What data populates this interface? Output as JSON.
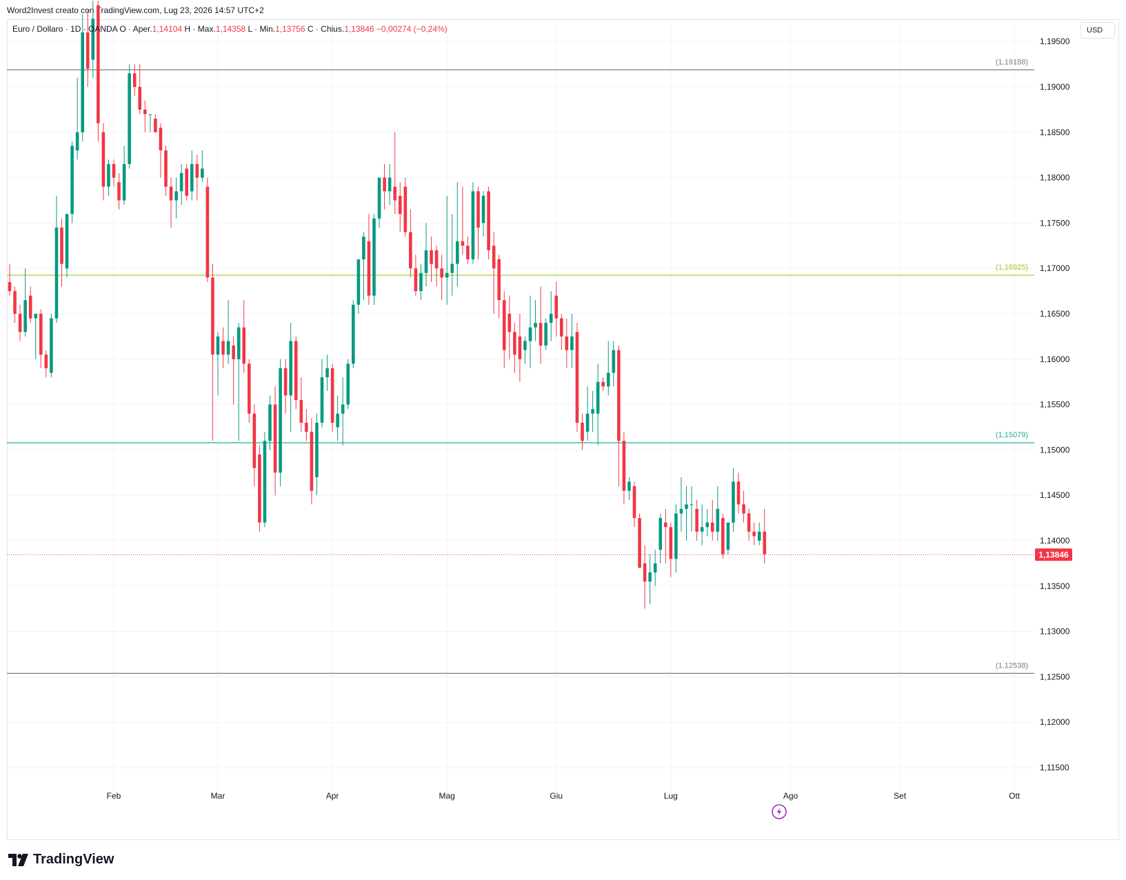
{
  "header": {
    "credit": "Word2Invest creato con TradingView.com, Lug 23, 2026 14:57 UTC+2"
  },
  "legend": {
    "prefix": "Euro / Dollaro · 1D · OANDA  O · Aper.",
    "open": "1,14104",
    "high_label": "H · Max.",
    "high": "1,14358",
    "low_label": "L · Min.",
    "low": "1,13756",
    "close_label": "C · Chius.",
    "close": "1,13846",
    "change": "−0,00274 (−0,24%)"
  },
  "currency_button": "USD",
  "footer": {
    "brand": "TradingView"
  },
  "colors": {
    "up": "#089981",
    "down": "#f23645",
    "grid": "#f0f3fa",
    "axis_text": "#131722",
    "line_gray": "#787b86",
    "line_olive": "#9cc920",
    "line_teal": "#22ab94"
  },
  "icons": [
    "tradingview-logo-icon",
    "lightning-icon"
  ],
  "chart_data": {
    "type": "candlestick",
    "symbol": "Euro / Dollaro",
    "timeframe": "1D",
    "ylim": [
      1.112,
      1.2
    ],
    "grid": true,
    "y_ticks": [
      "1,11500",
      "1,12000",
      "1,12500",
      "1,13000",
      "1,13500",
      "1,14000",
      "1,14500",
      "1,15000",
      "1,15500",
      "1,16000",
      "1,16500",
      "1,17000",
      "1,17500",
      "1,18000",
      "1,18500",
      "1,19000",
      "1,19500"
    ],
    "x_ticks": [
      {
        "label": "Feb",
        "index": 20
      },
      {
        "label": "Mar",
        "index": 40
      },
      {
        "label": "Apr",
        "index": 62
      },
      {
        "label": "Mag",
        "index": 84
      },
      {
        "label": "Giu",
        "index": 105
      },
      {
        "label": "Lug",
        "index": 127
      },
      {
        "label": "Ago",
        "index": 150
      },
      {
        "label": "Set",
        "index": 171
      },
      {
        "label": "Ott",
        "index": 193
      }
    ],
    "horizontal_lines": [
      {
        "value": 1.19188,
        "label": "(1,19188)",
        "color_key": "line_gray"
      },
      {
        "value": 1.16925,
        "label": "(1,16925)",
        "color_key": "line_olive"
      },
      {
        "value": 1.15079,
        "label": "(1,15079)",
        "color_key": "line_teal"
      },
      {
        "value": 1.12538,
        "label": "(1,12538)",
        "color_key": "line_gray"
      }
    ],
    "last_price": {
      "value": 1.13846,
      "label": "1,13846"
    },
    "candles": [
      [
        1.1685,
        1.1705,
        1.167,
        1.1675
      ],
      [
        1.1675,
        1.168,
        1.164,
        1.165
      ],
      [
        1.165,
        1.166,
        1.162,
        1.163
      ],
      [
        1.163,
        1.17,
        1.1625,
        1.1665
      ],
      [
        1.167,
        1.168,
        1.164,
        1.1645
      ],
      [
        1.1645,
        1.165,
        1.16,
        1.165
      ],
      [
        1.165,
        1.1655,
        1.159,
        1.1605
      ],
      [
        1.1605,
        1.161,
        1.158,
        1.159
      ],
      [
        1.1585,
        1.165,
        1.158,
        1.1645
      ],
      [
        1.1645,
        1.178,
        1.164,
        1.1745
      ],
      [
        1.1745,
        1.1755,
        1.168,
        1.1705
      ],
      [
        1.17,
        1.176,
        1.169,
        1.176
      ],
      [
        1.176,
        1.184,
        1.175,
        1.1835
      ],
      [
        1.183,
        1.191,
        1.182,
        1.185
      ],
      [
        1.185,
        1.198,
        1.184,
        1.196
      ],
      [
        1.196,
        1.1985,
        1.19,
        1.192
      ],
      [
        1.193,
        1.1995,
        1.191,
        1.1975
      ],
      [
        1.199,
        1.1995,
        1.184,
        1.186
      ],
      [
        1.185,
        1.186,
        1.1775,
        1.179
      ],
      [
        1.179,
        1.182,
        1.178,
        1.1815
      ],
      [
        1.1815,
        1.182,
        1.179,
        1.18
      ],
      [
        1.1795,
        1.1805,
        1.1765,
        1.1775
      ],
      [
        1.1775,
        1.1835,
        1.177,
        1.1815
      ],
      [
        1.1815,
        1.1925,
        1.181,
        1.1915
      ],
      [
        1.1915,
        1.1925,
        1.189,
        1.19
      ],
      [
        1.19,
        1.1925,
        1.187,
        1.1875
      ],
      [
        1.1875,
        1.1885,
        1.185,
        1.187
      ],
      [
        1.187,
        1.187,
        1.185,
        1.187
      ],
      [
        1.1865,
        1.187,
        1.185,
        1.185
      ],
      [
        1.1855,
        1.186,
        1.18,
        1.183
      ],
      [
        1.183,
        1.1835,
        1.178,
        1.179
      ],
      [
        1.179,
        1.18,
        1.1745,
        1.1775
      ],
      [
        1.1775,
        1.18,
        1.1755,
        1.1785
      ],
      [
        1.1785,
        1.1815,
        1.177,
        1.1805
      ],
      [
        1.181,
        1.1815,
        1.1775,
        1.178
      ],
      [
        1.1785,
        1.183,
        1.1775,
        1.1815
      ],
      [
        1.1815,
        1.1825,
        1.1775,
        1.18
      ],
      [
        1.18,
        1.183,
        1.1795,
        1.181
      ],
      [
        1.179,
        1.18,
        1.1685,
        1.169
      ],
      [
        1.169,
        1.1705,
        1.151,
        1.1605
      ],
      [
        1.1605,
        1.163,
        1.156,
        1.1625
      ],
      [
        1.162,
        1.1635,
        1.159,
        1.1605
      ],
      [
        1.1605,
        1.1665,
        1.1595,
        1.162
      ],
      [
        1.1615,
        1.1625,
        1.155,
        1.16
      ],
      [
        1.16,
        1.164,
        1.151,
        1.1635
      ],
      [
        1.1635,
        1.1665,
        1.1585,
        1.1595
      ],
      [
        1.1595,
        1.16,
        1.153,
        1.154
      ],
      [
        1.154,
        1.155,
        1.146,
        1.148
      ],
      [
        1.1495,
        1.1505,
        1.141,
        1.142
      ],
      [
        1.142,
        1.152,
        1.1415,
        1.151
      ],
      [
        1.151,
        1.156,
        1.15,
        1.155
      ],
      [
        1.155,
        1.157,
        1.145,
        1.1475
      ],
      [
        1.1475,
        1.16,
        1.146,
        1.159
      ],
      [
        1.159,
        1.16,
        1.154,
        1.156
      ],
      [
        1.156,
        1.164,
        1.152,
        1.162
      ],
      [
        1.162,
        1.1625,
        1.1545,
        1.1555
      ],
      [
        1.1555,
        1.158,
        1.152,
        1.153
      ],
      [
        1.153,
        1.1545,
        1.151,
        1.152
      ],
      [
        1.152,
        1.1535,
        1.144,
        1.1455
      ],
      [
        1.147,
        1.154,
        1.145,
        1.153
      ],
      [
        1.153,
        1.16,
        1.1525,
        1.158
      ],
      [
        1.158,
        1.1605,
        1.1565,
        1.159
      ],
      [
        1.159,
        1.1595,
        1.152,
        1.153
      ],
      [
        1.1525,
        1.156,
        1.151,
        1.154
      ],
      [
        1.154,
        1.158,
        1.1505,
        1.155
      ],
      [
        1.155,
        1.16,
        1.1545,
        1.1595
      ],
      [
        1.1595,
        1.1665,
        1.159,
        1.166
      ],
      [
        1.166,
        1.171,
        1.165,
        1.171
      ],
      [
        1.171,
        1.174,
        1.1665,
        1.1735
      ],
      [
        1.173,
        1.176,
        1.166,
        1.167
      ],
      [
        1.167,
        1.176,
        1.166,
        1.1755
      ],
      [
        1.1755,
        1.1795,
        1.1745,
        1.18
      ],
      [
        1.18,
        1.1815,
        1.1765,
        1.1785
      ],
      [
        1.1785,
        1.1815,
        1.177,
        1.18
      ],
      [
        1.179,
        1.185,
        1.176,
        1.1775
      ],
      [
        1.178,
        1.1795,
        1.174,
        1.176
      ],
      [
        1.179,
        1.18,
        1.1735,
        1.174
      ],
      [
        1.174,
        1.1765,
        1.169,
        1.17
      ],
      [
        1.17,
        1.1715,
        1.167,
        1.1675
      ],
      [
        1.1675,
        1.1705,
        1.1665,
        1.1695
      ],
      [
        1.1695,
        1.175,
        1.168,
        1.172
      ],
      [
        1.172,
        1.1735,
        1.1685,
        1.1705
      ],
      [
        1.172,
        1.1725,
        1.168,
        1.17
      ],
      [
        1.17,
        1.1715,
        1.1665,
        1.169
      ],
      [
        1.169,
        1.178,
        1.166,
        1.1695
      ],
      [
        1.1695,
        1.176,
        1.167,
        1.1705
      ],
      [
        1.1705,
        1.1795,
        1.168,
        1.173
      ],
      [
        1.173,
        1.179,
        1.1715,
        1.1725
      ],
      [
        1.1725,
        1.1735,
        1.1705,
        1.171
      ],
      [
        1.171,
        1.1795,
        1.1705,
        1.1785
      ],
      [
        1.1785,
        1.179,
        1.171,
        1.1745
      ],
      [
        1.175,
        1.1785,
        1.1735,
        1.178
      ],
      [
        1.1785,
        1.179,
        1.171,
        1.172
      ],
      [
        1.1725,
        1.174,
        1.165,
        1.17
      ],
      [
        1.171,
        1.1715,
        1.1645,
        1.1665
      ],
      [
        1.1665,
        1.1675,
        1.159,
        1.161
      ],
      [
        1.165,
        1.167,
        1.16,
        1.163
      ],
      [
        1.163,
        1.164,
        1.1585,
        1.1605
      ],
      [
        1.1625,
        1.165,
        1.1575,
        1.16
      ],
      [
        1.161,
        1.1625,
        1.1595,
        1.162
      ],
      [
        1.162,
        1.167,
        1.159,
        1.1635
      ],
      [
        1.1635,
        1.1665,
        1.162,
        1.164
      ],
      [
        1.164,
        1.168,
        1.1595,
        1.1615
      ],
      [
        1.1615,
        1.1645,
        1.161,
        1.164
      ],
      [
        1.164,
        1.1675,
        1.162,
        1.165
      ],
      [
        1.167,
        1.1685,
        1.1625,
        1.1645
      ],
      [
        1.1645,
        1.165,
        1.161,
        1.1625
      ],
      [
        1.1625,
        1.1645,
        1.159,
        1.161
      ],
      [
        1.161,
        1.165,
        1.159,
        1.1625
      ],
      [
        1.163,
        1.164,
        1.152,
        1.153
      ],
      [
        1.153,
        1.154,
        1.15,
        1.151
      ],
      [
        1.152,
        1.157,
        1.151,
        1.154
      ],
      [
        1.154,
        1.1565,
        1.152,
        1.1545
      ],
      [
        1.154,
        1.1595,
        1.1505,
        1.1575
      ],
      [
        1.1575,
        1.158,
        1.1565,
        1.157
      ],
      [
        1.157,
        1.162,
        1.156,
        1.1585
      ],
      [
        1.1585,
        1.162,
        1.157,
        1.161
      ],
      [
        1.161,
        1.1615,
        1.146,
        1.151
      ],
      [
        1.151,
        1.152,
        1.144,
        1.1455
      ],
      [
        1.1455,
        1.147,
        1.1445,
        1.1465
      ],
      [
        1.146,
        1.1465,
        1.1415,
        1.1425
      ],
      [
        1.1425,
        1.143,
        1.137,
        1.137
      ],
      [
        1.1375,
        1.1395,
        1.1325,
        1.1355
      ],
      [
        1.1355,
        1.1385,
        1.133,
        1.1365
      ],
      [
        1.1365,
        1.139,
        1.135,
        1.1375
      ],
      [
        1.139,
        1.143,
        1.1375,
        1.1425
      ],
      [
        1.142,
        1.1435,
        1.1375,
        1.1415
      ],
      [
        1.1415,
        1.142,
        1.136,
        1.138
      ],
      [
        1.138,
        1.144,
        1.1365,
        1.143
      ],
      [
        1.143,
        1.147,
        1.141,
        1.1435
      ],
      [
        1.1435,
        1.146,
        1.14,
        1.144
      ],
      [
        1.144,
        1.146,
        1.141,
        1.144
      ],
      [
        1.1435,
        1.1445,
        1.14,
        1.141
      ],
      [
        1.141,
        1.144,
        1.1395,
        1.1415
      ],
      [
        1.1415,
        1.1435,
        1.1405,
        1.142
      ],
      [
        1.142,
        1.1445,
        1.14,
        1.141
      ],
      [
        1.141,
        1.146,
        1.14,
        1.1435
      ],
      [
        1.1425,
        1.143,
        1.138,
        1.1385
      ],
      [
        1.139,
        1.142,
        1.1385,
        1.142
      ],
      [
        1.142,
        1.148,
        1.141,
        1.1465
      ],
      [
        1.1465,
        1.1475,
        1.143,
        1.144
      ],
      [
        1.144,
        1.1455,
        1.142,
        1.143
      ],
      [
        1.143,
        1.1435,
        1.14,
        1.141
      ],
      [
        1.141,
        1.142,
        1.1395,
        1.1405
      ],
      [
        1.14,
        1.142,
        1.1395,
        1.141
      ],
      [
        1.141,
        1.1435,
        1.1375,
        1.1385
      ]
    ]
  }
}
